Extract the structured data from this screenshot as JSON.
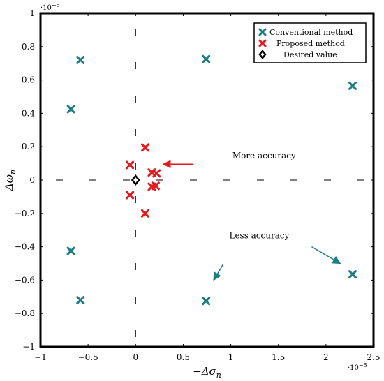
{
  "chart_data": {
    "type": "scatter",
    "xlabel": "−Δσ",
    "xlabel_sub": "n",
    "ylabel": "Δω",
    "ylabel_sub": "n",
    "x_exponent_label": "·10",
    "x_exponent_power": "−5",
    "y_exponent_label": "·10",
    "y_exponent_power": "−5",
    "xlim": [
      -1,
      2.5
    ],
    "ylim": [
      -1,
      1
    ],
    "x_ticks": [
      -1,
      -0.5,
      0,
      0.5,
      1,
      1.5,
      2,
      2.5
    ],
    "x_tick_labels": [
      "−1",
      "−0.5",
      "0",
      "0.5",
      "1",
      "1.5",
      "2",
      "2.5"
    ],
    "y_ticks": [
      -1,
      -0.8,
      -0.6,
      -0.4,
      -0.2,
      0,
      0.2,
      0.4,
      0.6,
      0.8,
      1
    ],
    "y_tick_labels": [
      "−1",
      "−0.8",
      "−0.6",
      "−0.4",
      "−0.2",
      "0",
      "0.2",
      "0.4",
      "0.6",
      "0.8",
      "1"
    ],
    "legend_position": "top-right",
    "series": [
      {
        "name": "Conventional method",
        "marker": "x",
        "color": "#1a7f80",
        "points": [
          [
            -0.58,
            0.72
          ],
          [
            0.74,
            0.725
          ],
          [
            -0.68,
            0.425
          ],
          [
            2.28,
            0.565
          ],
          [
            -0.68,
            -0.425
          ],
          [
            -0.58,
            -0.72
          ],
          [
            0.74,
            -0.725
          ],
          [
            2.28,
            -0.565
          ]
        ]
      },
      {
        "name": "Proposed method",
        "marker": "x",
        "color": "#e8191c",
        "points": [
          [
            0.1,
            0.195
          ],
          [
            -0.06,
            0.09
          ],
          [
            0.17,
            0.045
          ],
          [
            0.22,
            0.04
          ],
          [
            0.17,
            -0.04
          ],
          [
            0.21,
            -0.035
          ],
          [
            -0.06,
            -0.09
          ],
          [
            0.1,
            -0.2
          ]
        ]
      },
      {
        "name": "Desired value",
        "marker": "diamond",
        "color": "#000000",
        "points": [
          [
            0,
            0
          ]
        ]
      }
    ],
    "annotations": [
      {
        "text": "More accuracy",
        "at": [
          1.35,
          0.13
        ],
        "color": "#e8191c",
        "arrow_from": [
          0.6,
          0.095
        ],
        "arrow_to": [
          0.29,
          0.095
        ]
      },
      {
        "text": "Less accuracy",
        "at": [
          1.3,
          -0.35
        ],
        "color": "#1a7f80",
        "arrow_from": [
          1.85,
          -0.4
        ],
        "arrow_to": [
          2.15,
          -0.5
        ]
      },
      {
        "text": "",
        "color": "#1a7f80",
        "arrow_from": [
          0.92,
          -0.505
        ],
        "arrow_to": [
          0.82,
          -0.6
        ]
      }
    ]
  }
}
